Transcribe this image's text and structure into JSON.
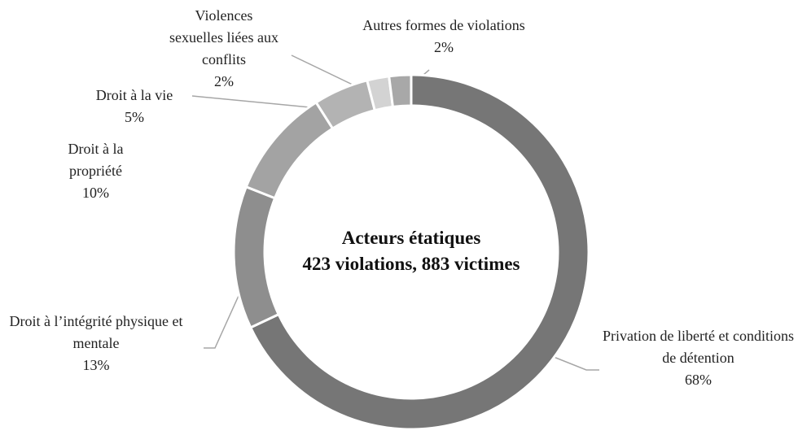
{
  "chart_data": {
    "type": "donut",
    "title": "Acteurs étatiques",
    "subtitle": "423 violations, 883 victimes",
    "categories": [
      "Privation de liberté et conditions de détention",
      "Droit à l’intégrité physique et mentale",
      "Droit à la propriété",
      "Droit à la vie",
      "Violences sexuelles liées aux conflits",
      "Autres formes de violations"
    ],
    "values": [
      68,
      13,
      10,
      5,
      2,
      2
    ],
    "value_labels": [
      "68%",
      "13%",
      "10%",
      "5%",
      "2%",
      "2%"
    ],
    "colors": [
      "#767676",
      "#8e8e8e",
      "#a3a3a3",
      "#b3b3b3",
      "#d3d3d3",
      "#a8a8a8"
    ]
  }
}
